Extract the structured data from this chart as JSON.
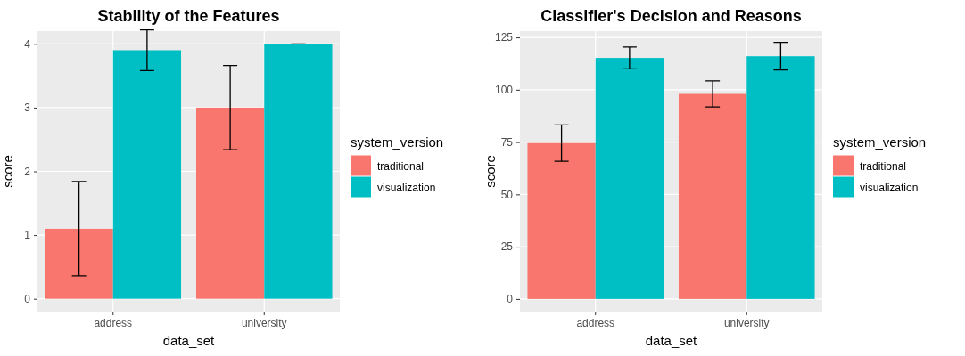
{
  "chart_data": [
    {
      "type": "bar",
      "title": "Stability of the Features",
      "xlabel": "data_set",
      "ylabel": "score",
      "legend_title": "system_version",
      "legend": "right",
      "grid": true,
      "categories": [
        "address",
        "university"
      ],
      "ylim": [
        -0.2,
        4.2
      ],
      "yticks": [
        0,
        1,
        2,
        3,
        4
      ],
      "series": [
        {
          "name": "traditional",
          "color": "#f8766d",
          "values": [
            1.1,
            3.0
          ],
          "errors": [
            0.74,
            0.66
          ]
        },
        {
          "name": "visualization",
          "color": "#00bfc4",
          "values": [
            3.9,
            4.0
          ],
          "errors": [
            0.32,
            0
          ]
        }
      ]
    },
    {
      "type": "bar",
      "title": "Classifier's Decision and Reasons",
      "xlabel": "data_set",
      "ylabel": "score",
      "legend_title": "system_version",
      "legend": "right",
      "grid": true,
      "categories": [
        "address",
        "university"
      ],
      "ylim": [
        -6,
        128
      ],
      "yticks": [
        0,
        25,
        50,
        75,
        100,
        125
      ],
      "series": [
        {
          "name": "traditional",
          "color": "#f8766d",
          "values": [
            74.5,
            98
          ],
          "errors": [
            8.7,
            6.2
          ]
        },
        {
          "name": "visualization",
          "color": "#00bfc4",
          "values": [
            115.2,
            116
          ],
          "errors": [
            5.2,
            6.6
          ]
        }
      ]
    }
  ]
}
